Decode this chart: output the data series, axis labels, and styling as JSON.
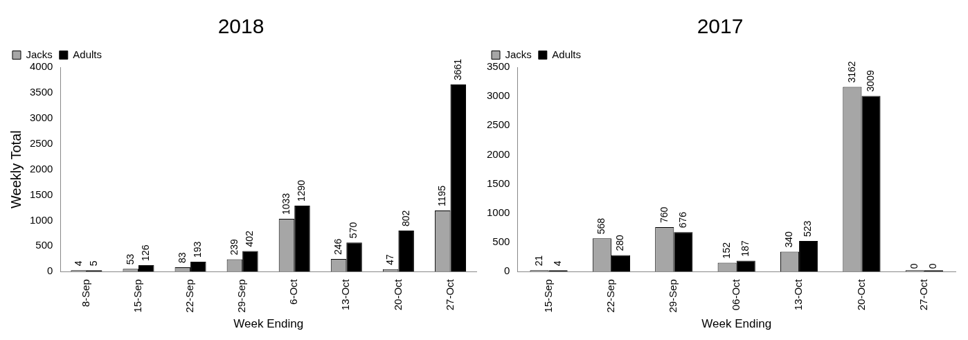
{
  "chart_data": [
    {
      "type": "bar",
      "title": "2018",
      "xlabel": "Week Ending",
      "ylabel": "Weekly Total",
      "categories": [
        "8-Sep",
        "15-Sep",
        "22-Sep",
        "29-Sep",
        "6-Oct",
        "13-Oct",
        "20-Oct",
        "27-Oct"
      ],
      "series": [
        {
          "name": "Jacks",
          "color": "#a6a6a6",
          "values": [
            4,
            53,
            83,
            239,
            1033,
            246,
            47,
            1195
          ]
        },
        {
          "name": "Adults",
          "color": "#000000",
          "values": [
            5,
            126,
            193,
            402,
            1290,
            570,
            802,
            3661
          ]
        }
      ],
      "ylim": [
        0,
        4000
      ],
      "yticks": [
        0,
        500,
        1000,
        1500,
        2000,
        2500,
        3000,
        3500,
        4000
      ],
      "grid": false,
      "legend": "top left",
      "data_labels": true
    },
    {
      "type": "bar",
      "title": "2017",
      "xlabel": "Week Ending",
      "categories": [
        "15-Sep",
        "22-Sep",
        "29-Sep",
        "06-Oct",
        "13-Oct",
        "20-Oct",
        "27-Oct"
      ],
      "series": [
        {
          "name": "Jacks",
          "color": "#a6a6a6",
          "values": [
            21,
            568,
            760,
            152,
            340,
            3162,
            0
          ]
        },
        {
          "name": "Adults",
          "color": "#000000",
          "values": [
            4,
            280,
            676,
            187,
            523,
            3009,
            0
          ]
        }
      ],
      "ylim": [
        0,
        3500
      ],
      "yticks": [
        0,
        500,
        1000,
        1500,
        2000,
        2500,
        3000,
        3500
      ],
      "grid": false,
      "legend": "top left",
      "data_labels": true
    }
  ]
}
